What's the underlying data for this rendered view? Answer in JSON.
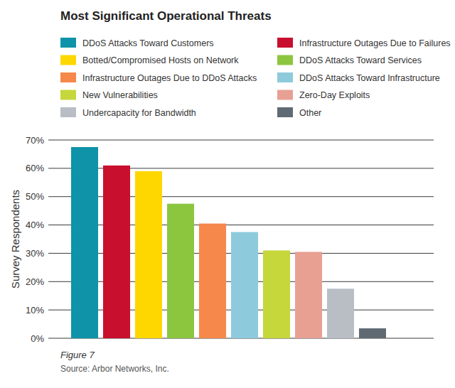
{
  "chart_data": {
    "type": "bar",
    "title": "Most Significant Operational Threats",
    "y_label": "Survey Respondents",
    "annotations": [
      "Figure 7",
      "Source: Arbor Networks, Inc."
    ],
    "categories": [
      "DDoS Attacks Toward Customers",
      "Infrastructure Outages Due to Failures",
      "Botted/Compromised Hosts on Network",
      "DDoS Attacks Toward Services",
      "Infrastructure Outages Due to DDoS Attacks",
      "DDoS Attacks Toward Infrastructure",
      "New Vulnerabilities",
      "Zero-Day Exploits",
      "Undercapacity for Bandwidth",
      "Other"
    ],
    "values": [
      67.5,
      61,
      59,
      47.5,
      40.5,
      37.5,
      31,
      30.5,
      17.5,
      3.5
    ],
    "colors": [
      "#0e93a8",
      "#c8102e",
      "#ffd700",
      "#8cc63f",
      "#f5884a",
      "#8dcbdc",
      "#c5d73b",
      "#e8a093",
      "#b8bec4",
      "#606a72"
    ],
    "ylim": [
      0,
      70
    ],
    "yticks": [
      {
        "value": 0,
        "label": "0%"
      },
      {
        "value": 10,
        "label": "10%"
      },
      {
        "value": 20,
        "label": "20%"
      },
      {
        "value": 30,
        "label": "30%"
      },
      {
        "value": 40,
        "label": "40%"
      },
      {
        "value": 50,
        "label": "50%"
      },
      {
        "value": 60,
        "label": "60%"
      },
      {
        "value": 70,
        "label": "70%"
      }
    ],
    "grid": true,
    "legend": "top",
    "tick_labels": "y"
  }
}
